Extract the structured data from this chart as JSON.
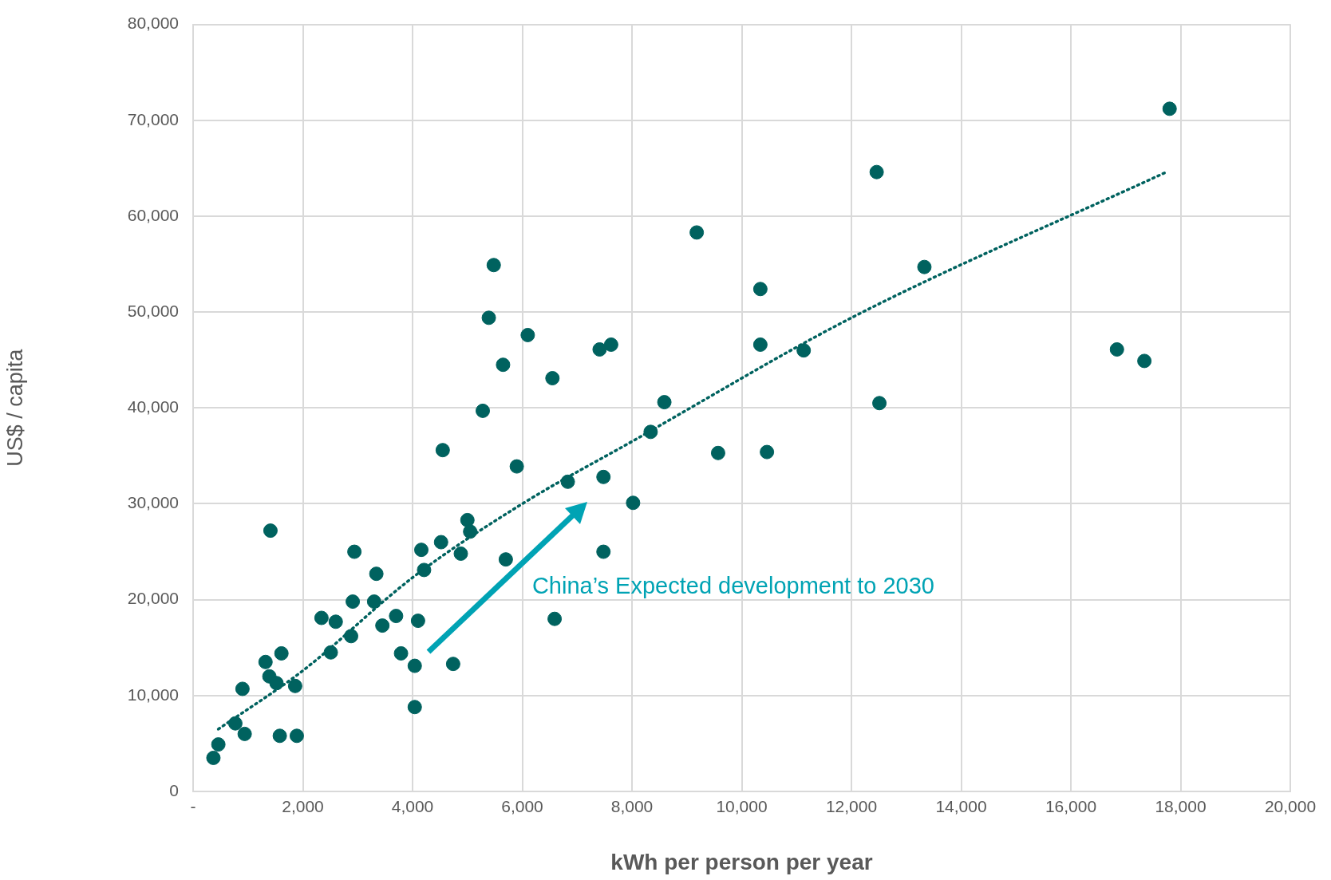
{
  "chart_data": {
    "type": "scatter",
    "xlabel": "kWh per person per year",
    "ylabel": "US$ / capita",
    "annotations": [
      "China’s Expected development to 2030"
    ],
    "grid": true,
    "marker": "circle",
    "xlim": [
      0,
      20000
    ],
    "xticks": [
      {
        "value": 0,
        "label": "-"
      },
      {
        "value": 2000,
        "label": "2,000"
      },
      {
        "value": 4000,
        "label": "4,000"
      },
      {
        "value": 6000,
        "label": "6,000"
      },
      {
        "value": 8000,
        "label": "8,000"
      },
      {
        "value": 10000,
        "label": "10,000"
      },
      {
        "value": 12000,
        "label": "12,000"
      },
      {
        "value": 14000,
        "label": "14,000"
      },
      {
        "value": 16000,
        "label": "16,000"
      },
      {
        "value": 18000,
        "label": "18,000"
      },
      {
        "value": 20000,
        "label": "20,000"
      }
    ],
    "ylim": [
      0,
      80000
    ],
    "yticks": [
      0,
      {
        "value": 10000,
        "label": "10,000"
      },
      {
        "value": 20000,
        "label": "20,000"
      },
      {
        "value": 30000,
        "label": "30,000"
      },
      {
        "value": 40000,
        "label": "40,000"
      },
      {
        "value": 50000,
        "label": "50,000"
      },
      {
        "value": 60000,
        "label": "60,000"
      },
      {
        "value": 70000,
        "label": "70,000"
      },
      {
        "value": 80000,
        "label": "80,000"
      }
    ],
    "series": [
      {
        "type": "scatter",
        "color": "#00625f",
        "x": [
          370,
          460,
          770,
          900,
          940,
          1320,
          1390,
          1520,
          1410,
          1610,
          1580,
          1860,
          1890,
          2340,
          2510,
          2600,
          2880,
          2910,
          2940,
          3300,
          3340,
          3450,
          3700,
          3790,
          4040,
          4040,
          4100,
          4160,
          4210,
          4520,
          4550,
          4740,
          4880,
          5000,
          5050,
          5280,
          5390,
          5480,
          5650,
          5700,
          5900,
          6100,
          6550,
          6590,
          6830,
          7410,
          7620,
          7480,
          7480,
          8020,
          8340,
          8590,
          9180,
          9570,
          10340,
          10340,
          10460,
          11130,
          12460,
          12510,
          13330,
          16840,
          17340,
          17800
        ],
        "values": [
          3500,
          4900,
          7100,
          10700,
          6000,
          13500,
          12000,
          11300,
          27200,
          14400,
          5800,
          11000,
          5800,
          18100,
          14500,
          17700,
          16200,
          19800,
          25000,
          19800,
          22700,
          17300,
          18300,
          14400,
          13100,
          8800,
          17800,
          25200,
          23100,
          26000,
          35600,
          13300,
          24800,
          28300,
          27100,
          39700,
          49400,
          54900,
          44500,
          24200,
          33900,
          47600,
          43100,
          18000,
          32300,
          46100,
          46600,
          32800,
          25000,
          30100,
          37500,
          40600,
          58300,
          35300,
          52400,
          46600,
          35400,
          46000,
          64600,
          40500,
          54700,
          46100,
          44900,
          71200
        ]
      },
      {
        "type": "line",
        "color": "#00625f",
        "line_style": "dotted",
        "marker": "none",
        "x": [
          460,
          2000,
          4000,
          6000,
          8000,
          12000,
          17740
        ],
        "values": [
          6500,
          12600,
          22300,
          30000,
          36500,
          49400,
          64600
        ]
      }
    ]
  }
}
